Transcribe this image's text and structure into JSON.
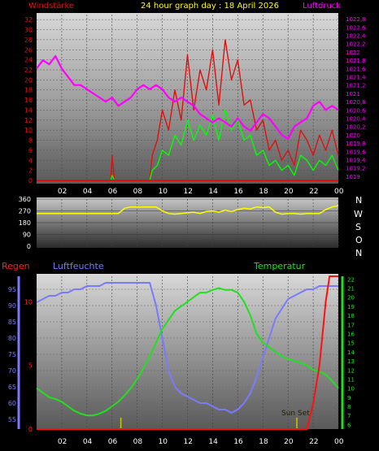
{
  "header": {
    "title": "24 hour graph day : 18 April 2026",
    "left_label": "Windstärke",
    "right_label": "Luftdruck"
  },
  "colors": {
    "wind_max": "#e01010",
    "wind_avg": "#00ff00",
    "pressure": "#ff00ff",
    "direction": "#ffff00",
    "humidity": "#7a7aff",
    "temperature": "#20e020",
    "rain": "#ff1010",
    "sun_marker": "#c8c800"
  },
  "chart_data": [
    {
      "type": "line",
      "title": "24 hour graph day : 18 April 2026",
      "ylabel_left": "Windstärke",
      "ylabel_right": "Luftdruck",
      "x_ticks": [
        "02",
        "04",
        "06",
        "08",
        "10",
        "12",
        "14",
        "16",
        "18",
        "20",
        "22",
        "00"
      ],
      "y_left_ticks": [
        0,
        2,
        4,
        6,
        8,
        10,
        12,
        14,
        16,
        18,
        20,
        22,
        24,
        26,
        28,
        30,
        32
      ],
      "y_left_lim": [
        0,
        33
      ],
      "y_right_ticks": [
        "1019",
        "1019,2",
        "1019,4",
        "1019,6",
        "1019,8",
        "1020",
        "1020,2",
        "1020,4",
        "1020,6",
        "1020,8",
        "1021",
        "1021,2",
        "1021,4",
        "1021,6",
        "1021,8",
        "1022",
        "1022,2",
        "1022,4",
        "1022,6",
        "1022,8"
      ],
      "y_right_lim": [
        1018.9,
        1022.9
      ],
      "series": [
        {
          "name": "Luftdruck",
          "axis": "right",
          "x": [
            0,
            0.5,
            1,
            1.5,
            2,
            2.5,
            3,
            3.5,
            4,
            4.5,
            5,
            5.5,
            6,
            6.5,
            7,
            7.5,
            8,
            8.5,
            9,
            9.5,
            10,
            10.5,
            11,
            11.5,
            12,
            12.5,
            13,
            13.5,
            14,
            14.5,
            15,
            15.5,
            16,
            16.5,
            17,
            17.5,
            18,
            18.5,
            19,
            19.5,
            20,
            20.5,
            21,
            21.5,
            22,
            22.5,
            23,
            23.5,
            24
          ],
          "values": [
            1021.6,
            1021.8,
            1021.7,
            1021.9,
            1021.6,
            1021.4,
            1021.2,
            1021.2,
            1021.1,
            1021.0,
            1020.9,
            1020.8,
            1020.9,
            1020.7,
            1020.8,
            1020.9,
            1021.1,
            1021.2,
            1021.1,
            1021.2,
            1021.1,
            1020.9,
            1020.8,
            1020.9,
            1020.8,
            1020.7,
            1020.5,
            1020.4,
            1020.3,
            1020.4,
            1020.3,
            1020.2,
            1020.4,
            1020.2,
            1020.1,
            1020.3,
            1020.5,
            1020.4,
            1020.2,
            1020.0,
            1019.9,
            1020.2,
            1020.3,
            1020.4,
            1020.7,
            1020.8,
            1020.6,
            1020.7,
            1020.6
          ]
        },
        {
          "name": "Windstärke max",
          "axis": "left",
          "x": [
            0,
            1,
            2,
            3,
            4,
            5,
            5.9,
            6,
            6.2,
            7,
            8,
            9,
            9.2,
            9.6,
            10,
            10.5,
            11,
            11.5,
            12,
            12.5,
            13,
            13.5,
            14,
            14.5,
            15,
            15.5,
            16,
            16.5,
            17,
            17.5,
            18,
            18.5,
            19,
            19.5,
            20,
            20.5,
            21,
            21.5,
            22,
            22.5,
            23,
            23.5,
            24
          ],
          "values": [
            0,
            0,
            0,
            0,
            0,
            0,
            0,
            5,
            0,
            0,
            0,
            0,
            5,
            8,
            14,
            10,
            18,
            12,
            25,
            14,
            22,
            18,
            26,
            15,
            28,
            20,
            24,
            15,
            16,
            10,
            12,
            6,
            8,
            4,
            6,
            3,
            10,
            8,
            5,
            9,
            6,
            10,
            5
          ]
        },
        {
          "name": "Windstärke",
          "axis": "left",
          "x": [
            0,
            1,
            2,
            3,
            4,
            5,
            5.9,
            6,
            6.2,
            7,
            8,
            9,
            9.2,
            9.6,
            10,
            10.5,
            11,
            11.5,
            12,
            12.5,
            13,
            13.5,
            14,
            14.5,
            15,
            15.5,
            16,
            16.5,
            17,
            17.5,
            18,
            18.5,
            19,
            19.5,
            20,
            20.5,
            21,
            21.5,
            22,
            22.5,
            23,
            23.5,
            24
          ],
          "values": [
            0,
            0,
            0,
            0,
            0,
            0,
            0,
            1,
            0,
            0,
            0,
            0,
            2,
            3,
            6,
            5,
            9,
            7,
            12,
            8,
            11,
            9,
            13,
            8,
            14,
            10,
            12,
            8,
            9,
            5,
            6,
            3,
            4,
            2,
            3,
            1,
            5,
            4,
            2,
            4,
            3,
            5,
            2
          ]
        }
      ]
    },
    {
      "type": "line",
      "title": "",
      "y_ticks": [
        "360",
        "270",
        "180",
        "90",
        "0"
      ],
      "y_lim": [
        0,
        360
      ],
      "direction_labels": [
        "N",
        "W",
        "S",
        "O",
        "N"
      ],
      "series": [
        {
          "name": "Windrichtung",
          "x": [
            0,
            0.5,
            1,
            1.5,
            2,
            2.5,
            3,
            3.5,
            4,
            4.5,
            5,
            5.5,
            6,
            6.5,
            7,
            7.5,
            8,
            8.5,
            9,
            9.5,
            10,
            10.5,
            11,
            11.5,
            12,
            12.5,
            13,
            13.5,
            14,
            14.5,
            15,
            15.5,
            16,
            16.5,
            17,
            17.5,
            18,
            18.5,
            19,
            19.5,
            20,
            20.5,
            21,
            21.5,
            22,
            22.5,
            23,
            23.5,
            24
          ],
          "values": [
            250,
            250,
            250,
            250,
            250,
            250,
            250,
            250,
            250,
            250,
            250,
            250,
            250,
            250,
            290,
            300,
            300,
            300,
            300,
            300,
            270,
            250,
            245,
            250,
            255,
            260,
            250,
            265,
            270,
            260,
            275,
            265,
            280,
            290,
            285,
            300,
            295,
            300,
            260,
            245,
            250,
            250,
            245,
            250,
            250,
            250,
            280,
            300,
            310
          ]
        }
      ]
    },
    {
      "type": "line",
      "title": "",
      "legend": [
        "Regen",
        "Luftfeuchte",
        "Temperatur"
      ],
      "y_left_rain_ticks": [
        "0",
        "5",
        "10"
      ],
      "y_left_rain_lim": [
        0,
        12
      ],
      "y_left_hum_ticks": [
        "55",
        "60",
        "65",
        "70",
        "75",
        "80",
        "85",
        "90",
        "95"
      ],
      "y_left_hum_lim": [
        52,
        99
      ],
      "y_right_temp_ticks": [
        "6",
        "7",
        "8",
        "9",
        "10",
        "11",
        "12",
        "13",
        "14",
        "15",
        "16",
        "17",
        "18",
        "19",
        "20",
        "21",
        "22"
      ],
      "y_right_temp_lim": [
        5.5,
        22.3
      ],
      "annotation": "Sun Set",
      "series": [
        {
          "name": "Luftfeuchte",
          "x": [
            0,
            0.5,
            1,
            1.5,
            2,
            2.5,
            3,
            3.5,
            4,
            4.5,
            5,
            5.5,
            6,
            6.5,
            7,
            7.5,
            8,
            8.5,
            9,
            9.5,
            10,
            10.5,
            11,
            11.5,
            12,
            12.5,
            13,
            13.5,
            14,
            14.5,
            15,
            15.5,
            16,
            16.5,
            17,
            17.5,
            18,
            18.5,
            19,
            19.5,
            20,
            20.5,
            21,
            21.5,
            22,
            22.5,
            23,
            23.5,
            24
          ],
          "values": [
            91,
            92,
            93,
            93,
            94,
            94,
            95,
            95,
            96,
            96,
            96,
            97,
            97,
            97,
            97,
            97,
            97,
            97,
            97,
            90,
            80,
            70,
            65,
            63,
            62,
            61,
            60,
            60,
            59,
            58,
            58,
            57,
            58,
            60,
            63,
            68,
            74,
            80,
            86,
            89,
            92,
            93,
            94,
            95,
            95,
            96,
            96,
            96,
            96
          ]
        },
        {
          "name": "Temperatur",
          "x": [
            0,
            0.5,
            1,
            1.5,
            2,
            2.5,
            3,
            3.5,
            4,
            4.5,
            5,
            5.5,
            6,
            6.5,
            7,
            7.5,
            8,
            8.5,
            9,
            9.5,
            10,
            10.5,
            11,
            11.5,
            12,
            12.5,
            13,
            13.5,
            14,
            14.5,
            15,
            15.5,
            16,
            16.5,
            17,
            17.5,
            18,
            18.5,
            19,
            19.5,
            20,
            20.5,
            21,
            21.5,
            22,
            22.5,
            23,
            23.5,
            24
          ],
          "values": [
            10,
            9.5,
            9,
            8.8,
            8.5,
            8,
            7.5,
            7.2,
            7,
            7,
            7.2,
            7.5,
            8,
            8.5,
            9.2,
            10,
            11,
            12.2,
            13.5,
            15,
            16.5,
            17.5,
            18.5,
            19,
            19.5,
            20,
            20.5,
            20.5,
            20.8,
            21,
            20.8,
            20.8,
            20.5,
            19.5,
            18,
            16,
            15,
            14.5,
            14,
            13.5,
            13.2,
            13,
            12.8,
            12.5,
            12,
            11.8,
            11.5,
            10.8,
            10
          ]
        },
        {
          "name": "Regen",
          "x": [
            0,
            2,
            4,
            6,
            8,
            10,
            12,
            14,
            16,
            18,
            20,
            21,
            21.5,
            22,
            22.5,
            23,
            23.3,
            23.6,
            24
          ],
          "values": [
            0,
            0,
            0,
            0,
            0,
            0,
            0,
            0,
            0,
            0,
            0,
            0,
            0,
            2,
            5,
            10,
            12,
            12,
            12
          ]
        }
      ]
    }
  ]
}
